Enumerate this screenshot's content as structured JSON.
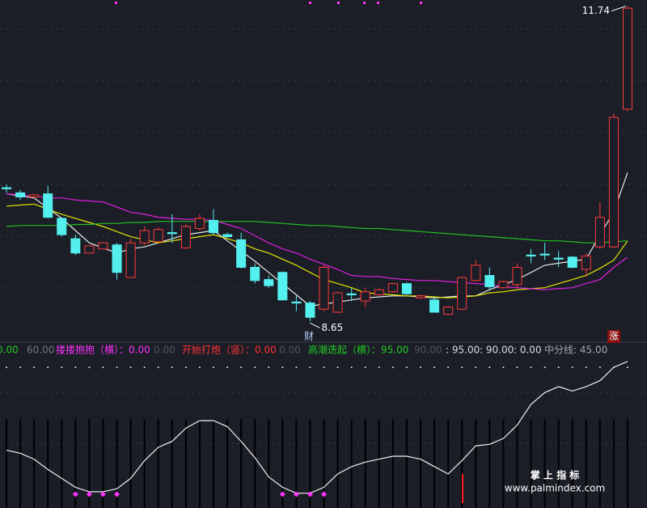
{
  "chart_data": [
    {
      "type": "candlestick",
      "up_color": "#ff3b3b",
      "down_color": "#54f0f0",
      "ylim": [
        8.47,
        11.8
      ],
      "open": [
        9.96,
        9.91,
        9.87,
        9.9,
        9.66,
        9.46,
        9.32,
        9.36,
        9.4,
        9.08,
        9.42,
        9.43,
        9.52,
        9.37,
        9.56,
        9.64,
        9.5,
        9.45,
        9.18,
        9.06,
        9.13,
        8.84,
        8.83,
        8.77,
        8.74,
        8.92,
        8.85,
        8.91,
        8.94,
        9.02,
        8.88,
        8.86,
        8.72,
        8.77,
        9.05,
        9.1,
        8.98,
        9.01,
        9.3,
        9.31,
        9.27,
        9.28,
        9.16,
        9.38,
        9.38,
        10.73
      ],
      "high": [
        9.99,
        9.94,
        9.9,
        9.98,
        9.67,
        9.5,
        9.39,
        9.42,
        9.42,
        9.46,
        9.58,
        9.57,
        9.7,
        9.6,
        9.7,
        9.75,
        9.52,
        9.52,
        9.22,
        9.1,
        9.14,
        8.9,
        8.85,
        9.2,
        8.94,
        8.98,
        8.98,
        8.97,
        9.03,
        9.03,
        8.91,
        8.88,
        8.8,
        9.09,
        9.25,
        9.18,
        9.05,
        9.22,
        9.36,
        9.42,
        9.34,
        9.29,
        9.32,
        9.82,
        10.69,
        11.74
      ],
      "low": [
        9.91,
        9.84,
        9.86,
        9.66,
        9.48,
        9.3,
        9.32,
        9.36,
        9.06,
        9.08,
        9.4,
        9.42,
        9.42,
        9.36,
        9.54,
        9.5,
        9.47,
        9.17,
        9.02,
        8.98,
        8.86,
        8.75,
        8.65,
        8.75,
        8.73,
        8.85,
        8.79,
        8.9,
        8.93,
        8.91,
        8.87,
        8.74,
        8.72,
        8.76,
        9.04,
        8.96,
        8.97,
        8.98,
        9.22,
        9.25,
        9.18,
        9.17,
        9.09,
        9.36,
        9.37,
        10.71
      ],
      "close": [
        9.95,
        9.87,
        9.89,
        9.67,
        9.5,
        9.32,
        9.39,
        9.42,
        9.13,
        9.42,
        9.54,
        9.55,
        9.51,
        9.58,
        9.66,
        9.52,
        9.48,
        9.18,
        9.05,
        9.0,
        8.86,
        8.83,
        8.69,
        9.18,
        8.93,
        8.91,
        8.94,
        8.96,
        9.02,
        8.92,
        8.9,
        8.74,
        8.79,
        9.08,
        9.2,
        8.99,
        9.04,
        9.18,
        9.29,
        9.3,
        9.26,
        9.18,
        9.29,
        9.67,
        10.65,
        11.72
      ],
      "series": [
        {
          "color": "#e8e8e8",
          "values": [
            9.9,
            9.88,
            9.86,
            9.76,
            9.66,
            9.54,
            9.42,
            9.37,
            9.32,
            9.36,
            9.38,
            9.42,
            9.46,
            9.5,
            9.52,
            9.54,
            9.44,
            9.34,
            9.24,
            9.13,
            9.02,
            8.91,
            8.8,
            8.82,
            8.84,
            8.86,
            8.88,
            8.89,
            8.9,
            8.9,
            8.89,
            8.88,
            8.89,
            8.9,
            8.9,
            8.96,
            9.01,
            9.06,
            9.13,
            9.2,
            9.22,
            9.24,
            9.26,
            9.5,
            9.72,
            10.11
          ]
        },
        {
          "color": "#e6e600",
          "values": [
            9.78,
            9.79,
            9.8,
            9.75,
            9.7,
            9.66,
            9.62,
            9.58,
            9.53,
            9.48,
            9.45,
            9.42,
            9.44,
            9.46,
            9.48,
            9.5,
            9.46,
            9.42,
            9.36,
            9.32,
            9.26,
            9.2,
            9.13,
            9.06,
            9.02,
            8.98,
            8.93,
            8.92,
            8.91,
            8.9,
            8.9,
            8.89,
            8.88,
            8.89,
            8.9,
            8.93,
            8.94,
            8.96,
            8.97,
            8.98,
            9.02,
            9.06,
            9.1,
            9.17,
            9.25,
            9.44
          ]
        },
        {
          "color": "#e020e0",
          "values": [
            9.9,
            9.89,
            9.88,
            9.86,
            9.86,
            9.84,
            9.83,
            9.82,
            9.77,
            9.72,
            9.7,
            9.67,
            9.66,
            9.65,
            9.65,
            9.64,
            9.6,
            9.56,
            9.49,
            9.42,
            9.36,
            9.32,
            9.26,
            9.21,
            9.16,
            9.1,
            9.09,
            9.09,
            9.07,
            9.06,
            9.05,
            9.05,
            9.04,
            9.03,
            9.02,
            9.01,
            8.99,
            8.98,
            8.97,
            8.96,
            8.97,
            8.98,
            9.02,
            9.06,
            9.18,
            9.28
          ]
        },
        {
          "color": "#22c022",
          "values": [
            9.58,
            9.59,
            9.59,
            9.59,
            9.59,
            9.6,
            9.6,
            9.61,
            9.61,
            9.62,
            9.62,
            9.63,
            9.63,
            9.63,
            9.63,
            9.63,
            9.63,
            9.63,
            9.63,
            9.62,
            9.61,
            9.6,
            9.59,
            9.59,
            9.58,
            9.57,
            9.56,
            9.56,
            9.55,
            9.54,
            9.53,
            9.52,
            9.51,
            9.5,
            9.49,
            9.48,
            9.47,
            9.46,
            9.45,
            9.44,
            9.44,
            9.43,
            9.42,
            9.42,
            9.43,
            9.44
          ]
        }
      ],
      "annotations": {
        "cai": "财",
        "zhang": "涨"
      }
    },
    {
      "type": "line",
      "ylim": [
        0,
        100
      ],
      "color": "#f0f0f0",
      "header": [
        {
          "label": "0.00",
          "color": "#22cc22"
        },
        {
          "value": 60,
          "label": "60.00",
          "color": "#777777"
        },
        {
          "label": "搂搂抱抱（横）：0.00",
          "color": "#ff33ff"
        },
        {
          "label": "0.00",
          "color": "#555555"
        },
        {
          "label": "开始打炮（竖）：0.00",
          "color": "#ff3333"
        },
        {
          "label": "0.00",
          "color": "#555555"
        },
        {
          "value": 95,
          "label": "高潮迭起（横）：95.00",
          "color": "#22cc22"
        },
        {
          "label": "90.00",
          "color": "#555555"
        },
        {
          "label": ": 95.00",
          "color": "#dddddd"
        },
        {
          "label": ": 90.00",
          "color": "#dddddd"
        },
        {
          "label": ": 0.00",
          "color": "#dddddd"
        },
        {
          "label": "中分线: 45.00",
          "color": "#aaaaaa"
        }
      ],
      "values": [
        39,
        37,
        33,
        26,
        20,
        14,
        11,
        11,
        13,
        20,
        32,
        41,
        45,
        54,
        59,
        59,
        55,
        45,
        34,
        21,
        14,
        10,
        10,
        14,
        23,
        28,
        31,
        33,
        35,
        35,
        33,
        28,
        23,
        32,
        42,
        43,
        47,
        56,
        70,
        78,
        82,
        79,
        82,
        86,
        95,
        99
      ],
      "signal_indices": [
        5,
        6,
        7,
        8,
        20,
        21,
        22,
        23
      ],
      "signal_color": "#ff33ff"
    }
  ],
  "watermark": {
    "title": "掌 上 指 标",
    "url": "www.palmindex.com"
  }
}
